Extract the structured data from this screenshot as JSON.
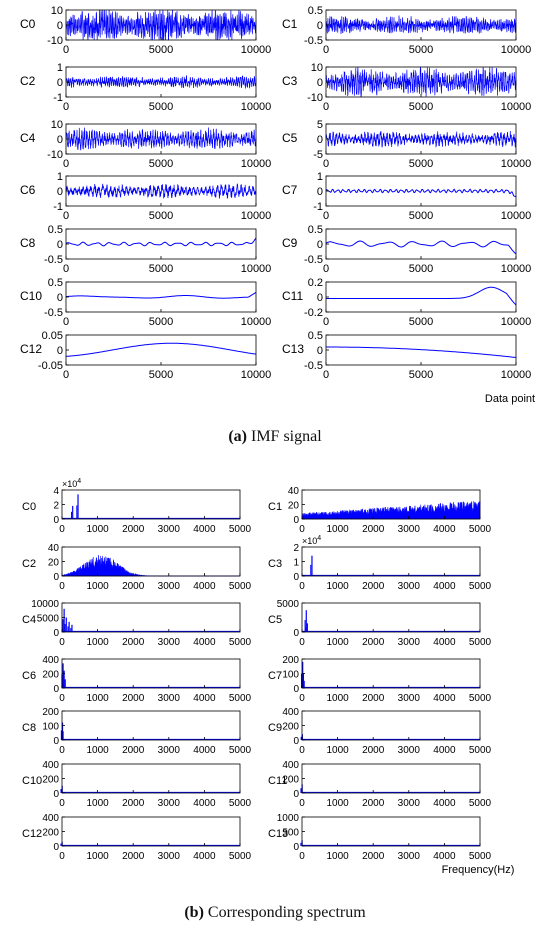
{
  "caption_a": {
    "tag": "(a)",
    "text": "IMF signal"
  },
  "caption_b": {
    "tag": "(b)",
    "text": "Corresponding spectrum"
  },
  "chart_data": [
    {
      "panel": "a",
      "type": "line",
      "xlabel": "Data point",
      "xlim": [
        0,
        10000
      ],
      "xticks": [
        0,
        5000,
        10000
      ],
      "color": "#0000ff",
      "subplots": [
        {
          "label": "C0",
          "ylim": [
            -10,
            10
          ],
          "yticks": [
            "10",
            "0",
            "-10"
          ],
          "amplitude": 9.5,
          "waves": 120,
          "kind": "noise"
        },
        {
          "label": "C1",
          "ylim": [
            -0.5,
            0.5
          ],
          "yticks": [
            "0.5",
            "0",
            "-0.5"
          ],
          "amplitude": 0.25,
          "waves": 110,
          "kind": "noise"
        },
        {
          "label": "C2",
          "ylim": [
            -1,
            1
          ],
          "yticks": [
            "1",
            "0",
            "-1"
          ],
          "amplitude": 0.35,
          "waves": 95,
          "kind": "noise"
        },
        {
          "label": "C3",
          "ylim": [
            -10,
            10
          ],
          "yticks": [
            "10",
            "0",
            "-10"
          ],
          "amplitude": 8,
          "waves": 85,
          "kind": "noise"
        },
        {
          "label": "C4",
          "ylim": [
            -10,
            10
          ],
          "yticks": [
            "10",
            "0",
            "-10"
          ],
          "amplitude": 6,
          "waves": 75,
          "kind": "noise"
        },
        {
          "label": "C5",
          "ylim": [
            -5,
            5
          ],
          "yticks": [
            "5",
            "0",
            "-5"
          ],
          "amplitude": 2.2,
          "waves": 60,
          "kind": "noise"
        },
        {
          "label": "C6",
          "ylim": [
            -1,
            1
          ],
          "yticks": [
            "1",
            "0",
            "-1"
          ],
          "amplitude": 0.4,
          "waves": 48,
          "kind": "noise"
        },
        {
          "label": "C7",
          "ylim": [
            -1,
            1
          ],
          "yticks": [
            "1",
            "0",
            "-1"
          ],
          "amplitude": 0.12,
          "waves": 36,
          "kind": "smooth"
        },
        {
          "label": "C8",
          "ylim": [
            -0.5,
            0.5
          ],
          "yticks": [
            "0.5",
            "0",
            "-0.5"
          ],
          "amplitude": 0.06,
          "waves": 14,
          "kind": "smooth"
        },
        {
          "label": "C9",
          "ylim": [
            -0.5,
            0.5
          ],
          "yticks": [
            "0.5",
            "0",
            "-0.5"
          ],
          "amplitude": 0.1,
          "waves": 7,
          "kind": "smooth"
        },
        {
          "label": "C10",
          "ylim": [
            -0.5,
            0.5
          ],
          "yticks": [
            "0.5",
            "0",
            "-0.5"
          ],
          "amplitude": 0.05,
          "waves": 2,
          "kind": "smooth"
        },
        {
          "label": "C11",
          "ylim": [
            -0.2,
            0.2
          ],
          "yticks": [
            "0.2",
            "0",
            "-0.2"
          ],
          "amplitude": 0.15,
          "waves": 1,
          "kind": "bump"
        },
        {
          "label": "C12",
          "ylim": [
            -0.05,
            0.05
          ],
          "yticks": [
            "0.05",
            "0",
            "-0.05"
          ],
          "amplitude": 0.025,
          "waves": 1,
          "kind": "arch"
        },
        {
          "label": "C13",
          "ylim": [
            -0.5,
            0.5
          ],
          "yticks": [
            "0.5",
            "0",
            "-0.5"
          ],
          "amplitude": 0.2,
          "waves": 1,
          "kind": "decline"
        }
      ]
    },
    {
      "panel": "b",
      "type": "area",
      "xlabel": "Frequency(Hz)",
      "xlim": [
        0,
        5000
      ],
      "xticks": [
        0,
        1000,
        2000,
        3000,
        4000,
        5000
      ],
      "color": "#0000ff",
      "subplots": [
        {
          "label": "C0",
          "ylim": [
            0,
            40000
          ],
          "yticks": [
            "4",
            "2",
            "0"
          ],
          "exponent": "×10^4",
          "peaks": [
            [
              300,
              0.45
            ],
            [
              450,
              0.85
            ]
          ],
          "kind": "spikes"
        },
        {
          "label": "C1",
          "ylim": [
            0,
            40
          ],
          "yticks": [
            "40",
            "20",
            "0"
          ],
          "peaks": [],
          "kind": "ramp"
        },
        {
          "label": "C2",
          "ylim": [
            0,
            40
          ],
          "yticks": [
            "40",
            "20",
            "0"
          ],
          "peaks": [],
          "kind": "hump"
        },
        {
          "label": "C3",
          "ylim": [
            0,
            20000
          ],
          "yticks": [
            "2",
            "1",
            "0"
          ],
          "exponent": "×10^4",
          "peaks": [
            [
              280,
              0.7
            ]
          ],
          "kind": "spikes"
        },
        {
          "label": "C4",
          "ylim": [
            0,
            10000
          ],
          "yticks": [
            "10000",
            "5000",
            "0"
          ],
          "peaks": [
            [
              60,
              0.8
            ],
            [
              120,
              0.5
            ],
            [
              200,
              0.35
            ],
            [
              280,
              0.25
            ]
          ],
          "kind": "spikes"
        },
        {
          "label": "C5",
          "ylim": [
            0,
            5000
          ],
          "yticks": [
            "5000",
            "0"
          ],
          "peaks": [
            [
              120,
              0.75
            ],
            [
              150,
              0.3
            ]
          ],
          "kind": "spikes"
        },
        {
          "label": "C6",
          "ylim": [
            0,
            400
          ],
          "yticks": [
            "400",
            "200",
            "0"
          ],
          "peaks": [
            [
              30,
              0.85
            ],
            [
              60,
              0.6
            ],
            [
              90,
              0.3
            ]
          ],
          "kind": "spikes"
        },
        {
          "label": "C7",
          "ylim": [
            0,
            200
          ],
          "yticks": [
            "200",
            "100",
            "0"
          ],
          "peaks": [
            [
              20,
              0.9
            ],
            [
              40,
              0.5
            ],
            [
              60,
              0.25
            ]
          ],
          "kind": "spikes"
        },
        {
          "label": "C8",
          "ylim": [
            0,
            200
          ],
          "yticks": [
            "200",
            "100",
            "0"
          ],
          "peaks": [
            [
              15,
              0.6
            ],
            [
              30,
              0.3
            ]
          ],
          "kind": "spikes"
        },
        {
          "label": "C9",
          "ylim": [
            0,
            400
          ],
          "yticks": [
            "400",
            "200",
            "0"
          ],
          "peaks": [
            [
              10,
              0.2
            ]
          ],
          "kind": "spikes"
        },
        {
          "label": "C10",
          "ylim": [
            0,
            400
          ],
          "yticks": [
            "400",
            "200",
            "0"
          ],
          "peaks": [
            [
              5,
              0.25
            ]
          ],
          "kind": "spikes"
        },
        {
          "label": "C11",
          "ylim": [
            0,
            400
          ],
          "yticks": [
            "400",
            "200",
            "0"
          ],
          "peaks": [
            [
              4,
              0.3
            ]
          ],
          "kind": "spikes"
        },
        {
          "label": "C12",
          "ylim": [
            0,
            400
          ],
          "yticks": [
            "400",
            "200",
            "0"
          ],
          "peaks": [
            [
              3,
              0.15
            ]
          ],
          "kind": "spikes"
        },
        {
          "label": "C13",
          "ylim": [
            0,
            1000
          ],
          "yticks": [
            "1000",
            "500",
            "0"
          ],
          "peaks": [
            [
              2,
              0.2
            ]
          ],
          "kind": "spikes"
        }
      ]
    }
  ]
}
